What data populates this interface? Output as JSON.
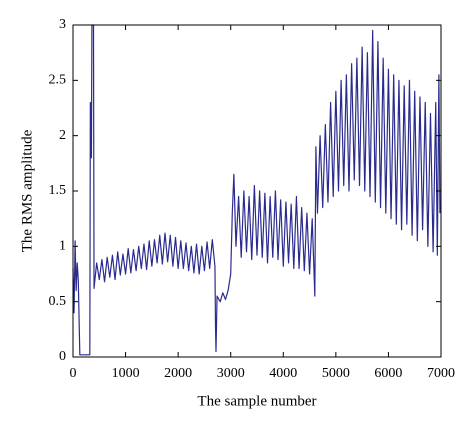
{
  "chart_data": {
    "type": "line",
    "xlabel": "The sample number",
    "ylabel": "The RMS amplitude",
    "xlim": [
      0,
      7000
    ],
    "xticks": [
      0,
      1000,
      2000,
      3000,
      4000,
      5000,
      6000,
      7000
    ],
    "ylim": [
      0,
      3
    ],
    "yticks": [
      0,
      0.5,
      1,
      1.5,
      2,
      2.5,
      3
    ],
    "grid": false,
    "series": [
      {
        "color": "#2b2b8f",
        "x": [
          0,
          20,
          40,
          60,
          80,
          100,
          130,
          320,
          330,
          350,
          360,
          390,
          400,
          450,
          500,
          550,
          600,
          650,
          700,
          750,
          800,
          850,
          900,
          950,
          1000,
          1050,
          1100,
          1150,
          1200,
          1250,
          1300,
          1350,
          1400,
          1450,
          1500,
          1550,
          1600,
          1650,
          1700,
          1750,
          1800,
          1850,
          1900,
          1950,
          2000,
          2050,
          2100,
          2150,
          2200,
          2250,
          2300,
          2350,
          2400,
          2450,
          2500,
          2550,
          2600,
          2650,
          2700,
          2710,
          2720,
          2740,
          2800,
          2850,
          2900,
          2950,
          3000,
          3030,
          3060,
          3100,
          3150,
          3200,
          3250,
          3300,
          3350,
          3400,
          3450,
          3500,
          3550,
          3600,
          3650,
          3700,
          3750,
          3800,
          3850,
          3900,
          3950,
          4000,
          4050,
          4100,
          4150,
          4200,
          4250,
          4300,
          4350,
          4400,
          4450,
          4500,
          4550,
          4600,
          4620,
          4650,
          4700,
          4750,
          4800,
          4850,
          4900,
          4950,
          5000,
          5050,
          5100,
          5150,
          5200,
          5250,
          5300,
          5350,
          5400,
          5450,
          5500,
          5550,
          5600,
          5650,
          5700,
          5750,
          5800,
          5850,
          5900,
          5950,
          6000,
          6050,
          6100,
          6150,
          6200,
          6250,
          6300,
          6350,
          6400,
          6450,
          6500,
          6550,
          6600,
          6650,
          6700,
          6750,
          6800,
          6850,
          6900,
          6930,
          6960,
          6980
        ],
        "values": [
          0.8,
          0.4,
          1.05,
          0.6,
          0.85,
          0.7,
          0.02,
          0.02,
          2.3,
          1.8,
          3,
          3,
          0.62,
          0.85,
          0.7,
          0.88,
          0.68,
          0.9,
          0.72,
          0.92,
          0.7,
          0.95,
          0.74,
          0.93,
          0.75,
          0.98,
          0.76,
          0.97,
          0.78,
          1.0,
          0.8,
          1.02,
          0.79,
          1.05,
          0.82,
          1.06,
          0.85,
          1.1,
          0.84,
          1.12,
          0.86,
          1.1,
          0.82,
          1.08,
          0.8,
          1.05,
          0.8,
          1.03,
          0.78,
          1.0,
          0.76,
          1.02,
          0.75,
          1.0,
          0.78,
          1.04,
          0.8,
          1.06,
          0.82,
          0.3,
          0.05,
          0.55,
          0.5,
          0.58,
          0.52,
          0.6,
          0.75,
          1.3,
          1.65,
          1.0,
          1.45,
          0.9,
          1.5,
          0.95,
          1.45,
          0.88,
          1.55,
          0.92,
          1.5,
          0.9,
          1.48,
          0.85,
          1.45,
          0.9,
          1.5,
          0.88,
          1.42,
          0.82,
          1.4,
          0.85,
          1.38,
          0.8,
          1.45,
          0.8,
          1.35,
          0.78,
          1.3,
          0.75,
          1.25,
          0.55,
          1.9,
          1.3,
          2.0,
          1.35,
          2.1,
          1.4,
          2.3,
          1.45,
          2.4,
          1.5,
          2.5,
          1.55,
          2.55,
          1.5,
          2.65,
          1.6,
          2.7,
          1.55,
          2.8,
          1.5,
          2.75,
          1.45,
          2.95,
          1.4,
          2.85,
          1.35,
          2.7,
          1.3,
          2.6,
          1.25,
          2.55,
          1.2,
          2.5,
          1.15,
          2.45,
          1.2,
          2.5,
          1.1,
          2.4,
          1.05,
          2.35,
          1.15,
          2.3,
          1.0,
          2.2,
          0.95,
          2.3,
          0.92,
          2.55,
          1.3
        ]
      }
    ]
  }
}
